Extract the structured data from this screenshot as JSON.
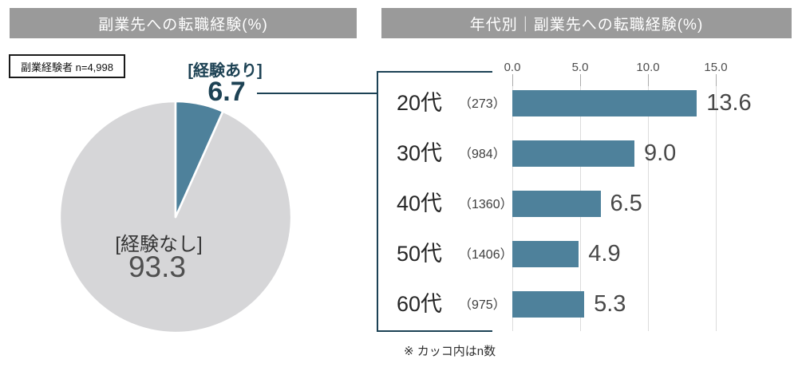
{
  "left_panel": {
    "title": "副業先への転職経験(%)",
    "sample_note": "副業経験者 n=4,998",
    "slice_yes_label": "[経験あり]",
    "slice_yes_value": "6.7",
    "slice_no_label": "[経験なし]",
    "slice_no_value": "93.3"
  },
  "right_panel": {
    "title": "年代別｜副業先への転職経験(%)",
    "footnote": "※ カッコ内はn数"
  },
  "colors": {
    "accent_teal": "#4E819B",
    "pie_gray": "#D6D6D8",
    "navy_line": "#1C4255",
    "banner_gray": "#9A9A9A"
  },
  "chart_data": [
    {
      "type": "pie",
      "title": "副業先への転職経験(%)",
      "sample_note": "副業経験者 n=4,998",
      "start_angle": "12-oclock",
      "direction": "clockwise",
      "slices": [
        {
          "label": "経験あり",
          "value": 6.7,
          "color": "#4E819B"
        },
        {
          "label": "経験なし",
          "value": 93.3,
          "color": "#D6D6D8"
        }
      ]
    },
    {
      "type": "bar",
      "orientation": "horizontal",
      "title": "年代別｜副業先への転職経験(%)",
      "categories": [
        "20代",
        "30代",
        "40代",
        "50代",
        "60代"
      ],
      "n_labels": [
        "（273）",
        "（984）",
        "（1360）",
        "（1406）",
        "（975）"
      ],
      "values": [
        13.6,
        9.0,
        6.5,
        4.9,
        5.3
      ],
      "value_labels": [
        "13.6",
        "9.0",
        "6.5",
        "4.9",
        "5.3"
      ],
      "ticks": [
        0,
        5,
        10,
        15
      ],
      "tick_labels": [
        "0.0",
        "5.0",
        "10.0",
        "15.0"
      ],
      "xlim": [
        0,
        17.5
      ],
      "grid": true,
      "legend": false,
      "footnote": "※ カッコ内はn数"
    }
  ]
}
